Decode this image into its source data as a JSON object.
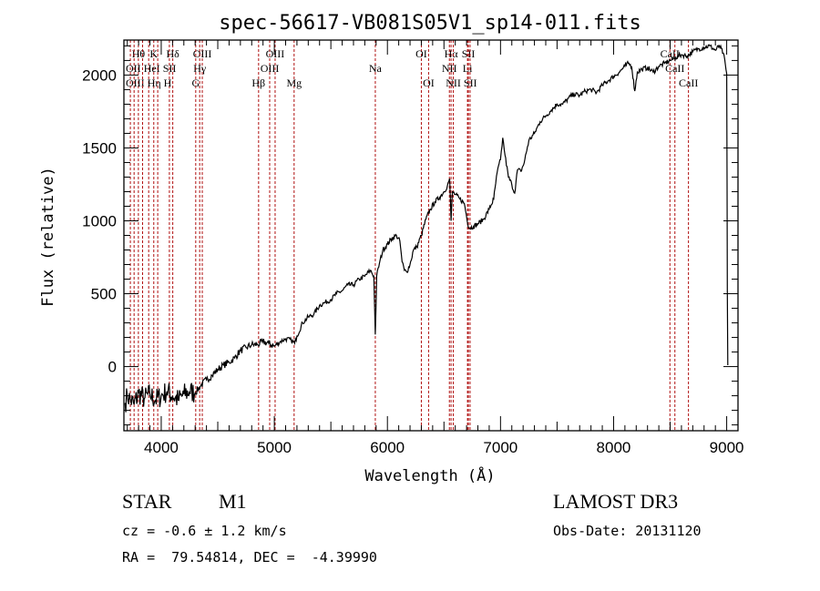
{
  "chart_data": {
    "type": "line",
    "title": "spec-56617-VB081S05V1_sp14-011.fits",
    "xlabel": "Wavelength (Å)",
    "ylabel": "Flux (relative)",
    "xlim": [
      3670,
      9100
    ],
    "ylim": [
      -440,
      2240
    ],
    "xticks": [
      4000,
      5000,
      6000,
      7000,
      8000,
      9000
    ],
    "xtick_labels": [
      "4000",
      "5000",
      "6000",
      "7000",
      "8000",
      "9000"
    ],
    "yticks": [
      0,
      500,
      1000,
      1500,
      2000
    ],
    "ytick_labels": [
      "0",
      "500",
      "1000",
      "1500",
      "2000"
    ],
    "grid": false,
    "series": [
      {
        "name": "spectrum",
        "color": "#000000",
        "x": [
          3680,
          3700,
          3730,
          3760,
          3800,
          3850,
          3900,
          3950,
          4000,
          4050,
          4100,
          4150,
          4200,
          4250,
          4300,
          4350,
          4400,
          4450,
          4500,
          4550,
          4600,
          4650,
          4700,
          4750,
          4800,
          4850,
          4900,
          4950,
          5000,
          5050,
          5100,
          5150,
          5180,
          5200,
          5250,
          5300,
          5350,
          5400,
          5450,
          5500,
          5550,
          5600,
          5650,
          5700,
          5750,
          5800,
          5850,
          5880,
          5893,
          5905,
          5930,
          5960,
          6000,
          6040,
          6080,
          6110,
          6130,
          6150,
          6170,
          6200,
          6230,
          6260,
          6300,
          6340,
          6380,
          6420,
          6460,
          6500,
          6530,
          6550,
          6563,
          6575,
          6600,
          6640,
          6680,
          6720,
          6760,
          6800,
          6850,
          6900,
          6940,
          6970,
          7000,
          7020,
          7040,
          7070,
          7100,
          7125,
          7150,
          7180,
          7210,
          7250,
          7300,
          7350,
          7400,
          7450,
          7500,
          7550,
          7600,
          7650,
          7700,
          7750,
          7800,
          7850,
          7900,
          7950,
          8000,
          8050,
          8100,
          8130,
          8160,
          8187,
          8210,
          8250,
          8300,
          8350,
          8400,
          8450,
          8500,
          8550,
          8600,
          8650,
          8700,
          8750,
          8800,
          8850,
          8900,
          8935,
          8970,
          9000,
          9003,
          9006,
          9010
        ],
        "y": [
          -250,
          -200,
          -230,
          -260,
          -180,
          -220,
          -190,
          -230,
          -200,
          -170,
          -200,
          -230,
          -190,
          -170,
          -180,
          -130,
          -90,
          -60,
          -20,
          10,
          30,
          60,
          110,
          130,
          150,
          150,
          170,
          160,
          140,
          170,
          190,
          180,
          160,
          210,
          300,
          340,
          360,
          420,
          440,
          460,
          500,
          520,
          560,
          560,
          600,
          620,
          660,
          620,
          220,
          620,
          710,
          800,
          840,
          880,
          900,
          860,
          720,
          660,
          650,
          700,
          800,
          820,
          900,
          1010,
          1080,
          1130,
          1160,
          1200,
          1240,
          1290,
          1000,
          1200,
          1180,
          1150,
          1120,
          950,
          960,
          980,
          1010,
          1080,
          1150,
          1330,
          1420,
          1570,
          1450,
          1300,
          1250,
          1190,
          1350,
          1340,
          1400,
          1550,
          1600,
          1680,
          1720,
          1760,
          1800,
          1800,
          1840,
          1870,
          1860,
          1890,
          1900,
          1880,
          1930,
          1960,
          1990,
          2020,
          2060,
          2080,
          2060,
          1890,
          2020,
          2040,
          2050,
          2020,
          2060,
          2080,
          2100,
          2120,
          2140,
          2130,
          2160,
          2180,
          2190,
          2200,
          2170,
          2200,
          2150,
          2010,
          1260,
          500,
          10
        ]
      }
    ],
    "lines": [
      {
        "label": "Hθ",
        "wavelength": 3798,
        "row": 0
      },
      {
        "label": "K",
        "wavelength": 3934,
        "row": 0
      },
      {
        "label": "Hδ",
        "wavelength": 4102,
        "row": 0
      },
      {
        "label": "OIII",
        "wavelength": 4363,
        "row": 0
      },
      {
        "label": "OIII",
        "wavelength": 5007,
        "row": 0
      },
      {
        "label": "OI",
        "wavelength": 6300,
        "row": 0
      },
      {
        "label": "Hα",
        "wavelength": 6563,
        "row": 0
      },
      {
        "label": "SII",
        "wavelength": 6716,
        "row": 0
      },
      {
        "label": "CaII",
        "wavelength": 8498,
        "row": 0
      },
      {
        "label": "OII",
        "wavelength": 3727,
        "row": 1
      },
      {
        "label": "HeI",
        "wavelength": 3889,
        "row": 1
      },
      {
        "label": "SII",
        "wavelength": 4072,
        "row": 1
      },
      {
        "label": "Hγ",
        "wavelength": 4340,
        "row": 1
      },
      {
        "label": "OIII",
        "wavelength": 4959,
        "row": 1
      },
      {
        "label": "Na",
        "wavelength": 5893,
        "row": 1
      },
      {
        "label": "NII",
        "wavelength": 6548,
        "row": 1
      },
      {
        "label": "Li",
        "wavelength": 6708,
        "row": 1
      },
      {
        "label": "CaII",
        "wavelength": 8542,
        "row": 1
      },
      {
        "label": "OIII",
        "wavelength": 3760,
        "row": 2
      },
      {
        "label": "Hη",
        "wavelength": 3835,
        "row": 2
      },
      {
        "label": "H",
        "wavelength": 3969,
        "row": 2
      },
      {
        "label": "G",
        "wavelength": 4305,
        "row": 2
      },
      {
        "label": "Hβ",
        "wavelength": 4861,
        "row": 2
      },
      {
        "label": "Mg",
        "wavelength": 5175,
        "row": 2
      },
      {
        "label": "OI",
        "wavelength": 6364,
        "row": 2
      },
      {
        "label": "NII",
        "wavelength": 6583,
        "row": 2
      },
      {
        "label": "SII",
        "wavelength": 6731,
        "row": 2
      },
      {
        "label": "CaII",
        "wavelength": 8662,
        "row": 2
      }
    ],
    "line_color": "#b01010"
  },
  "info": {
    "class": "STAR",
    "subclass": "M1",
    "cz": "cz = -0.6 ± 1.2 km/s",
    "radec": "RA =  79.54814, DEC =  -4.39990",
    "survey": "LAMOST DR3",
    "obsdate": "Obs-Date: 20131120"
  }
}
